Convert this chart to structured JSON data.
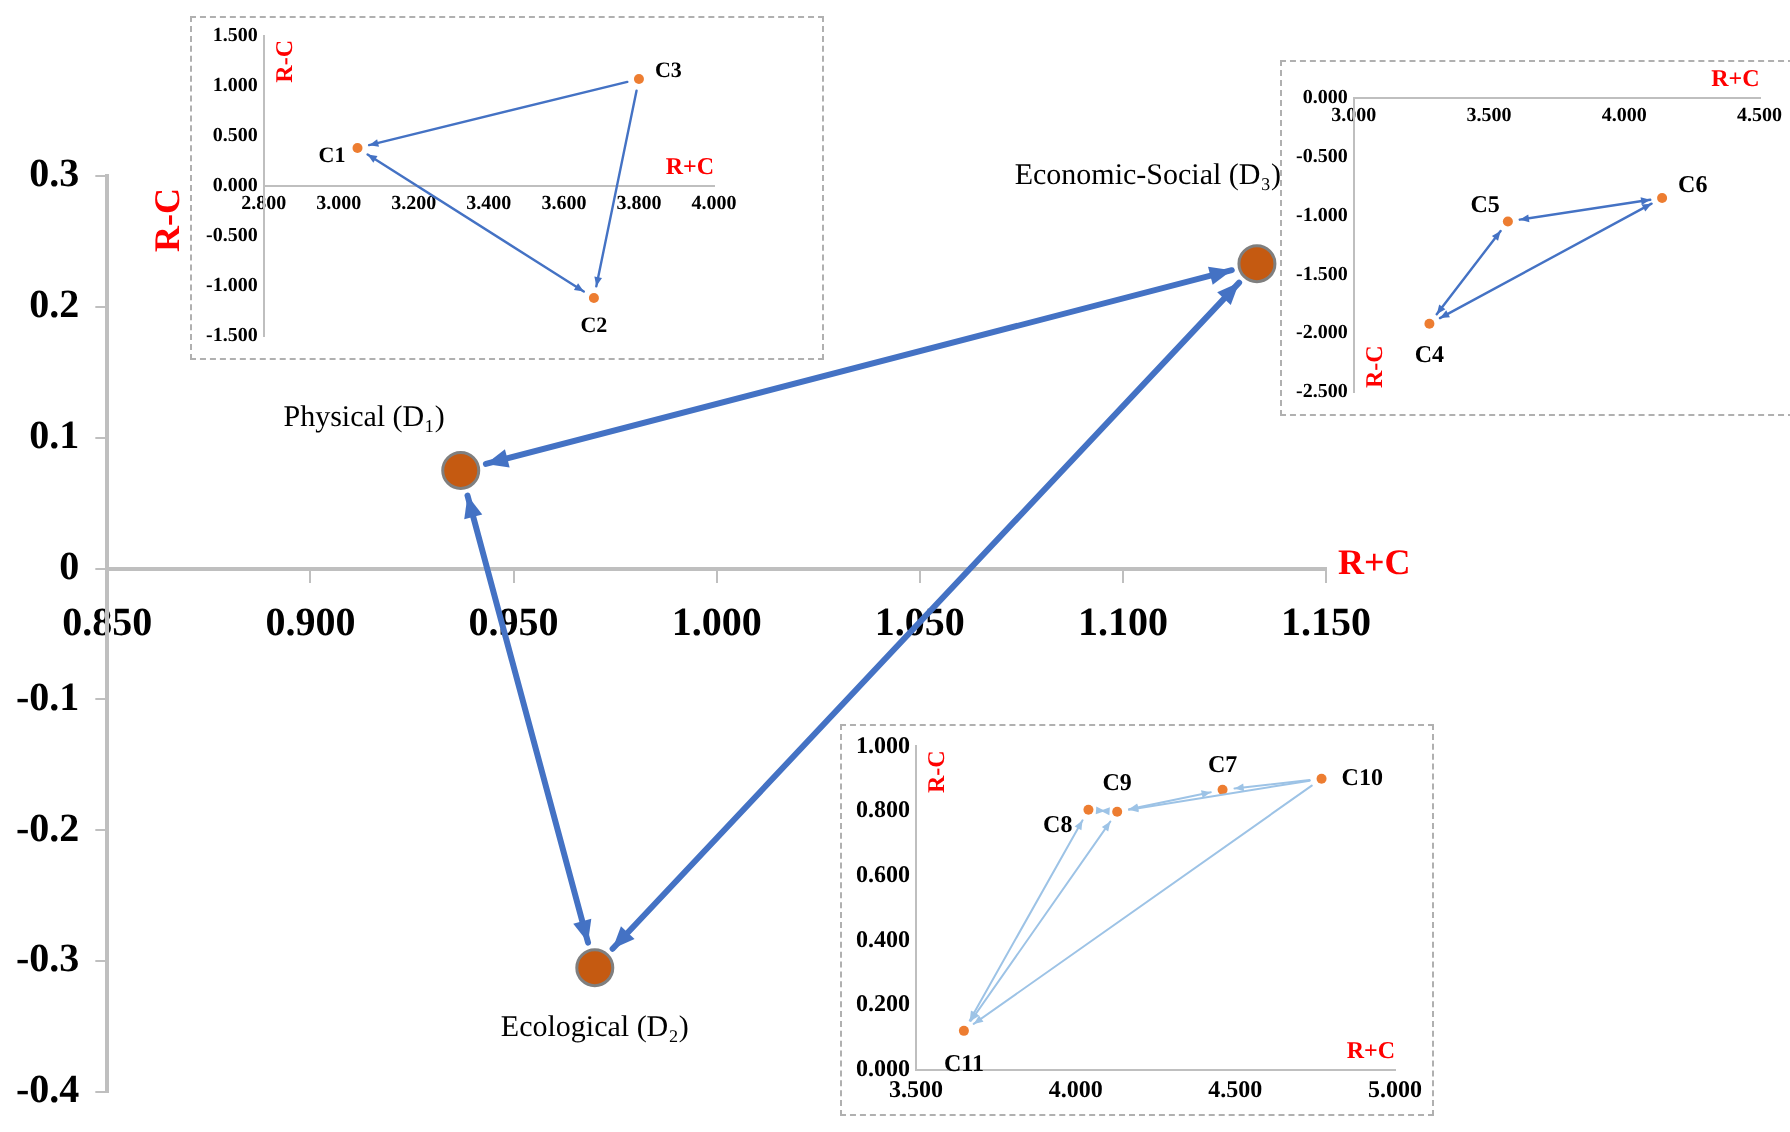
{
  "chart_data": [
    {
      "type": "scatter",
      "xlabel": "R+C",
      "ylabel": "R-C",
      "marker": "circle",
      "grid": false,
      "legend": false,
      "xlim": [
        0.85,
        1.15
      ],
      "ylim": [
        -0.4,
        0.3
      ],
      "xticks": [
        {
          "value": 0.85,
          "label": "0.850"
        },
        {
          "value": 0.9,
          "label": "0.900"
        },
        {
          "value": 0.95,
          "label": "0.950"
        },
        {
          "value": 1.0,
          "label": "1.000"
        },
        {
          "value": 1.05,
          "label": "1.050"
        },
        {
          "value": 1.1,
          "label": "1.100"
        },
        {
          "value": 1.15,
          "label": "1.150"
        }
      ],
      "yticks": [
        -0.4,
        -0.3,
        -0.2,
        -0.1,
        0,
        0.1,
        0.2,
        0.3
      ],
      "series": [
        {
          "color": "#c55a11",
          "x": [
            0.937,
            0.97,
            1.133
          ],
          "values": [
            0.075,
            -0.305,
            0.233
          ]
        }
      ],
      "annotations": [
        {
          "text": "Physical (D₁)",
          "x": 0.937,
          "y": 0.075
        },
        {
          "text": "Ecological (D₂)",
          "x": 0.97,
          "y": -0.305
        },
        {
          "text": "Economic-Social (D₃)",
          "x": 1.133,
          "y": 0.233
        }
      ]
    },
    {
      "type": "scatter",
      "xlabel": "R+C",
      "ylabel": "R-C",
      "marker": "circle",
      "grid": false,
      "legend": false,
      "xlim": [
        2.8,
        4.0
      ],
      "ylim": [
        -1.5,
        1.5
      ],
      "xticks": [
        {
          "value": 2.8,
          "label": "2.800"
        },
        {
          "value": 3.0,
          "label": "3.000"
        },
        {
          "value": 3.2,
          "label": "3.200"
        },
        {
          "value": 3.4,
          "label": "3.400"
        },
        {
          "value": 3.6,
          "label": "3.600"
        },
        {
          "value": 3.8,
          "label": "3.800"
        },
        {
          "value": 4.0,
          "label": "4.000"
        }
      ],
      "yticks": [
        {
          "value": -1.5,
          "label": "-1.500"
        },
        {
          "value": -1.0,
          "label": "-1.000"
        },
        {
          "value": -0.5,
          "label": "-0.500"
        },
        {
          "value": 0,
          "label": "0.000"
        },
        {
          "value": 0.5,
          "label": "0.500"
        },
        {
          "value": 1.0,
          "label": "1.000"
        },
        {
          "value": 1.5,
          "label": "1.500"
        }
      ],
      "series": [
        {
          "color": "#ed7d31",
          "x": [
            3.05,
            3.68,
            3.8
          ],
          "values": [
            0.38,
            -1.12,
            1.07
          ]
        }
      ],
      "annotations": [
        {
          "text": "C1",
          "x": 3.05,
          "y": 0.38
        },
        {
          "text": "C2",
          "x": 3.68,
          "y": -1.12
        },
        {
          "text": "C3",
          "x": 3.8,
          "y": 1.07
        }
      ]
    },
    {
      "type": "scatter",
      "xlabel": "R+C",
      "ylabel": "R-C",
      "marker": "circle",
      "grid": false,
      "legend": false,
      "xlim": [
        3.0,
        4.5
      ],
      "ylim": [
        -2.5,
        0
      ],
      "xticks": [
        {
          "value": 3.0,
          "label": "3.000"
        },
        {
          "value": 3.5,
          "label": "3.500"
        },
        {
          "value": 4.0,
          "label": "4.000"
        },
        {
          "value": 4.5,
          "label": "4.500"
        }
      ],
      "yticks": [
        {
          "value": -2.5,
          "label": "-2.500"
        },
        {
          "value": -2.0,
          "label": "-2.000"
        },
        {
          "value": -1.5,
          "label": "-1.500"
        },
        {
          "value": -1.0,
          "label": "-1.000"
        },
        {
          "value": -0.5,
          "label": "-0.500"
        },
        {
          "value": 0,
          "label": "0.000"
        }
      ],
      "series": [
        {
          "color": "#ed7d31",
          "x": [
            3.28,
            3.57,
            4.14
          ],
          "values": [
            -1.92,
            -1.05,
            -0.85
          ]
        }
      ],
      "annotations": [
        {
          "text": "C4",
          "x": 3.28,
          "y": -1.92
        },
        {
          "text": "C5",
          "x": 3.57,
          "y": -1.05
        },
        {
          "text": "C6",
          "x": 4.14,
          "y": -0.85
        }
      ]
    },
    {
      "type": "scatter",
      "xlabel": "R+C",
      "ylabel": "R-C",
      "marker": "circle",
      "grid": false,
      "legend": false,
      "xlim": [
        3.5,
        5.0
      ],
      "ylim": [
        0,
        1.0
      ],
      "xticks": [
        {
          "value": 3.5,
          "label": "3.500"
        },
        {
          "value": 4.0,
          "label": "4.000"
        },
        {
          "value": 4.5,
          "label": "4.500"
        },
        {
          "value": 5.0,
          "label": "5.000"
        }
      ],
      "yticks": [
        {
          "value": 0,
          "label": "0.000"
        },
        {
          "value": 0.2,
          "label": "0.200"
        },
        {
          "value": 0.4,
          "label": "0.400"
        },
        {
          "value": 0.6,
          "label": "0.600"
        },
        {
          "value": 0.8,
          "label": "0.800"
        },
        {
          "value": 1.0,
          "label": "1.000"
        }
      ],
      "series": [
        {
          "color": "#ed7d31",
          "x": [
            4.46,
            4.04,
            4.13,
            4.77,
            3.65
          ],
          "values": [
            0.866,
            0.804,
            0.798,
            0.9,
            0.121
          ]
        }
      ],
      "annotations": [
        {
          "text": "C7",
          "x": 4.46,
          "y": 0.866
        },
        {
          "text": "C8",
          "x": 4.04,
          "y": 0.804
        },
        {
          "text": "C9",
          "x": 4.13,
          "y": 0.798
        },
        {
          "text": "C10",
          "x": 4.77,
          "y": 0.9
        },
        {
          "text": "C11",
          "x": 3.65,
          "y": 0.121
        }
      ]
    }
  ]
}
